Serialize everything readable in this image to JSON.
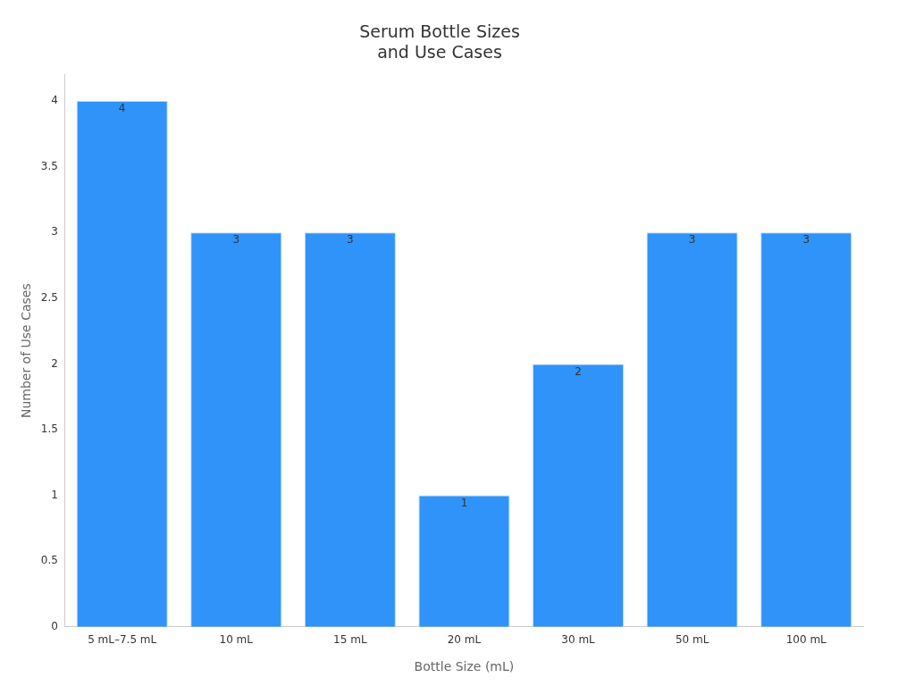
{
  "chart_data": {
    "type": "bar",
    "title": "Serum Bottle Sizes\nand Use Cases",
    "xlabel": "Bottle Size (mL)",
    "ylabel": "Number of Use Cases",
    "categories": [
      "5 mL–7.5 mL",
      "10 mL",
      "15 mL",
      "20 mL",
      "30 mL",
      "50 mL",
      "100 mL"
    ],
    "values": [
      4,
      3,
      3,
      1,
      2,
      3,
      3
    ],
    "color": "#2f93f9",
    "ylim": [
      0,
      4.2
    ],
    "yticks": [
      0,
      0.5,
      1,
      1.5,
      2,
      2.5,
      3,
      3.5,
      4
    ],
    "grid": false,
    "legend": false,
    "data_labels": true
  }
}
